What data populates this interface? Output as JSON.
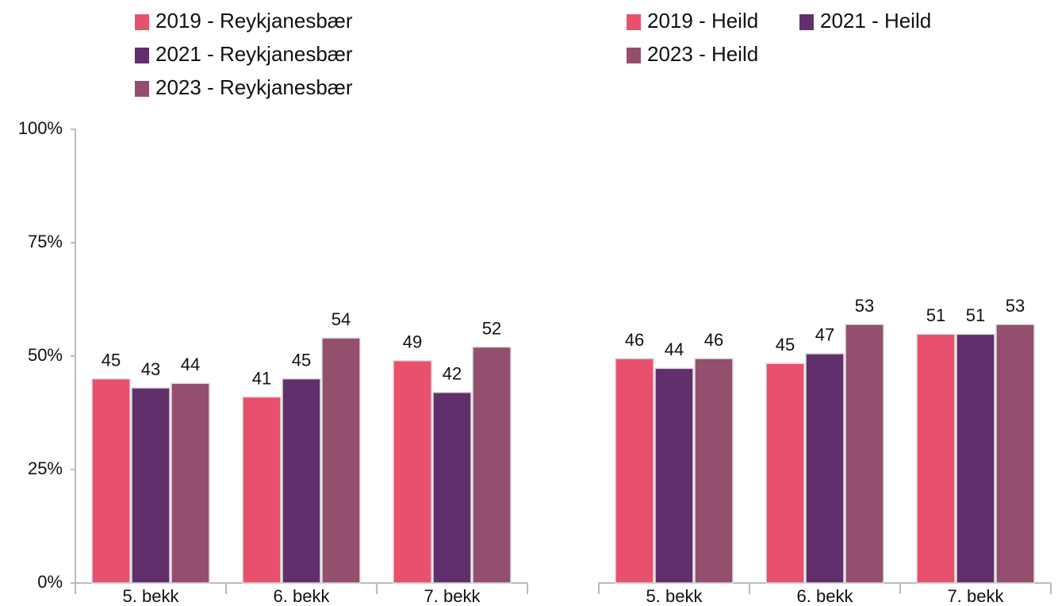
{
  "chart_data": [
    {
      "type": "bar",
      "categories": [
        "5. bekk",
        "6. bekk",
        "7. bekk"
      ],
      "series": [
        {
          "name": "2019 - Reykjanesbær",
          "color": "#e8506e",
          "values": [
            45,
            41,
            49
          ]
        },
        {
          "name": "2021 - Reykjanesbær",
          "color": "#612f6b",
          "values": [
            43,
            45,
            42
          ]
        },
        {
          "name": "2023 - Reykjanesbær",
          "color": "#934f6d",
          "values": [
            44,
            54,
            52
          ]
        }
      ],
      "ylim": [
        0,
        100
      ],
      "yticks": [
        {
          "value": 0,
          "label": "0%"
        },
        {
          "value": 25,
          "label": "25%"
        },
        {
          "value": 50,
          "label": "50%"
        },
        {
          "value": 75,
          "label": "75%"
        },
        {
          "value": 100,
          "label": "100%"
        }
      ]
    },
    {
      "type": "bar",
      "categories": [
        "5. bekk",
        "6. bekk",
        "7. bekk"
      ],
      "series": [
        {
          "name": "2019 - Heild",
          "color": "#e8506e",
          "values": [
            46,
            45,
            51
          ]
        },
        {
          "name": "2021 - Heild",
          "color": "#612f6b",
          "values": [
            44,
            47,
            51
          ]
        },
        {
          "name": "2023 - Heild",
          "color": "#934f6d",
          "values": [
            46,
            53,
            53
          ]
        }
      ],
      "ylim": [
        0,
        93
      ]
    }
  ]
}
